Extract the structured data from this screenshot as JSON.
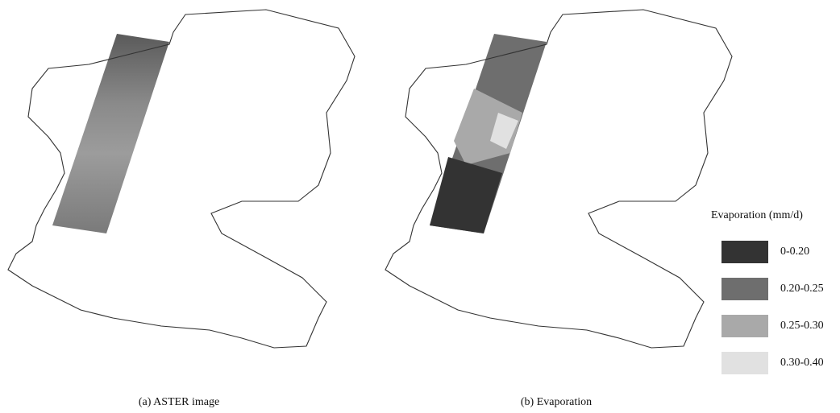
{
  "panels": [
    {
      "caption": "(a) ASTER image"
    },
    {
      "caption": "(b) Evaporation"
    }
  ],
  "legend": {
    "title": "Evaporation (mm/d)",
    "items": [
      {
        "label": "0-0.20",
        "color": "#333333"
      },
      {
        "label": "0.20-0.25",
        "color": "#6e6e6e"
      },
      {
        "label": "0.25-0.30",
        "color": "#a9a9a9"
      },
      {
        "label": "0.30-0.40",
        "color": "#e1e1e1"
      }
    ]
  }
}
